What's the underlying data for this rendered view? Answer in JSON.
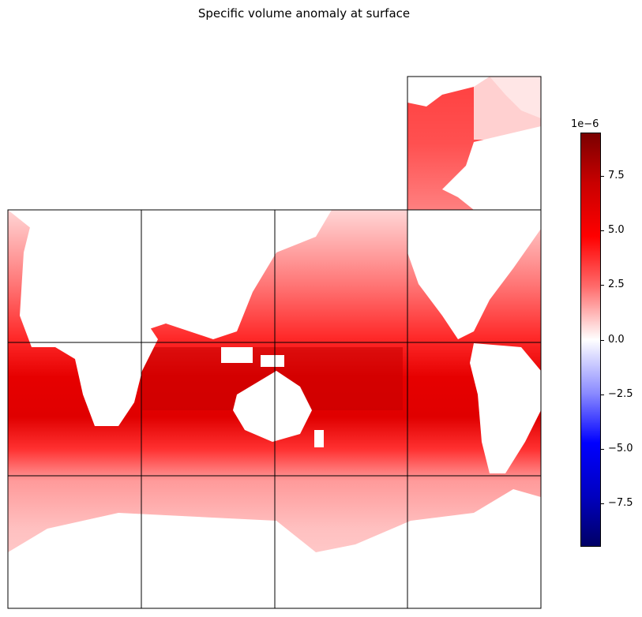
{
  "title": "Specific volume anomaly at surface",
  "colorbar": {
    "exponent": "1e−6",
    "ticks": [
      "7.5",
      "5.0",
      "2.5",
      "0.0",
      "−2.5",
      "−5.0",
      "−7.5"
    ],
    "range": [
      -9.5,
      9.5
    ],
    "colormap": "seismic"
  },
  "colors": {
    "land": "#ffffff",
    "deep_red": "#c00000",
    "red": "#ff1a1a",
    "mid": "#ff6060",
    "light": "#ffb8b8",
    "faint": "#ffe0e0",
    "grid": "#000000"
  }
}
